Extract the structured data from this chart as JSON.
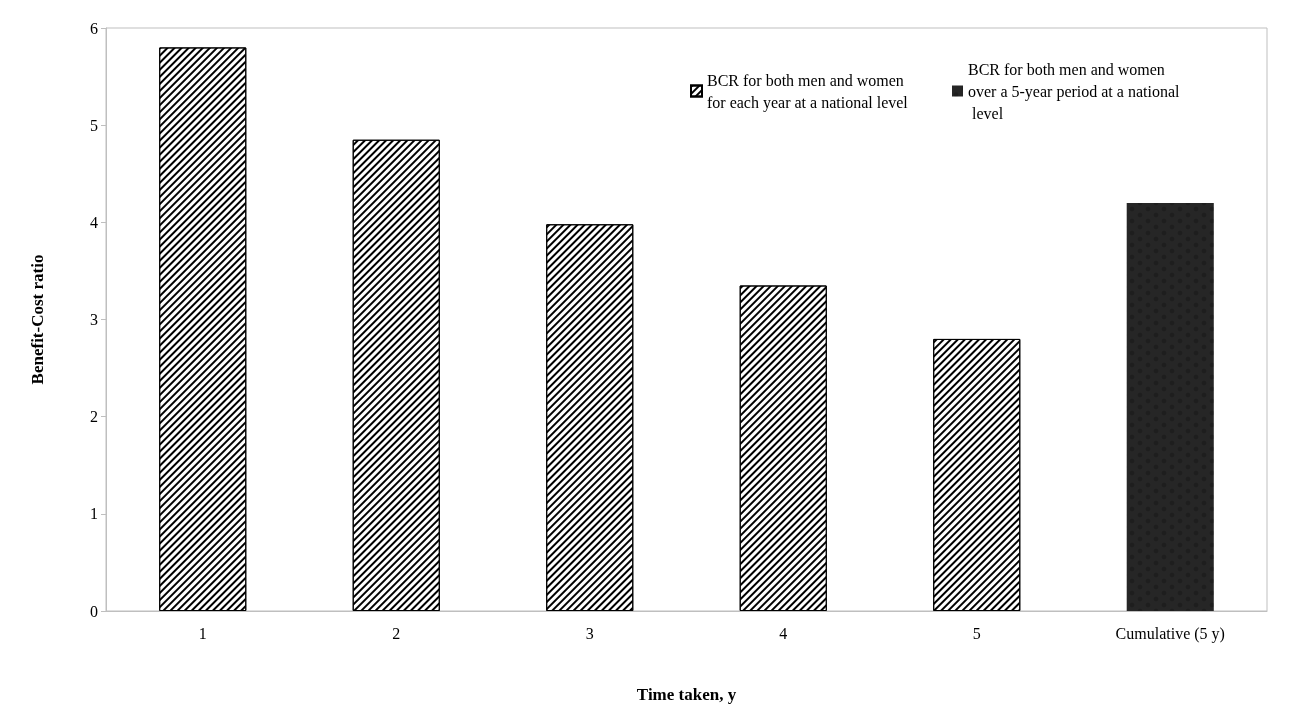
{
  "chart_data": {
    "type": "bar",
    "xlabel": "Time taken, y",
    "ylabel": "Benefit-Cost ratio",
    "categories": [
      "1",
      "2",
      "3",
      "4",
      "5",
      "Cumulative (5 y)"
    ],
    "series": [
      {
        "name": "BCR for both men and women for each year at a national level",
        "color": "#ffffff",
        "values": [
          5.8,
          4.85,
          3.98,
          3.35,
          2.8,
          null
        ]
      },
      {
        "name": "BCR for both men and women over a 5-year period at a national level",
        "color": "#262626",
        "values": [
          null,
          null,
          null,
          null,
          null,
          4.2
        ]
      }
    ],
    "ylim": [
      0,
      6
    ],
    "yticks": [
      0,
      1,
      2,
      3,
      4,
      5,
      6
    ],
    "grid": false,
    "legend": "top right"
  }
}
